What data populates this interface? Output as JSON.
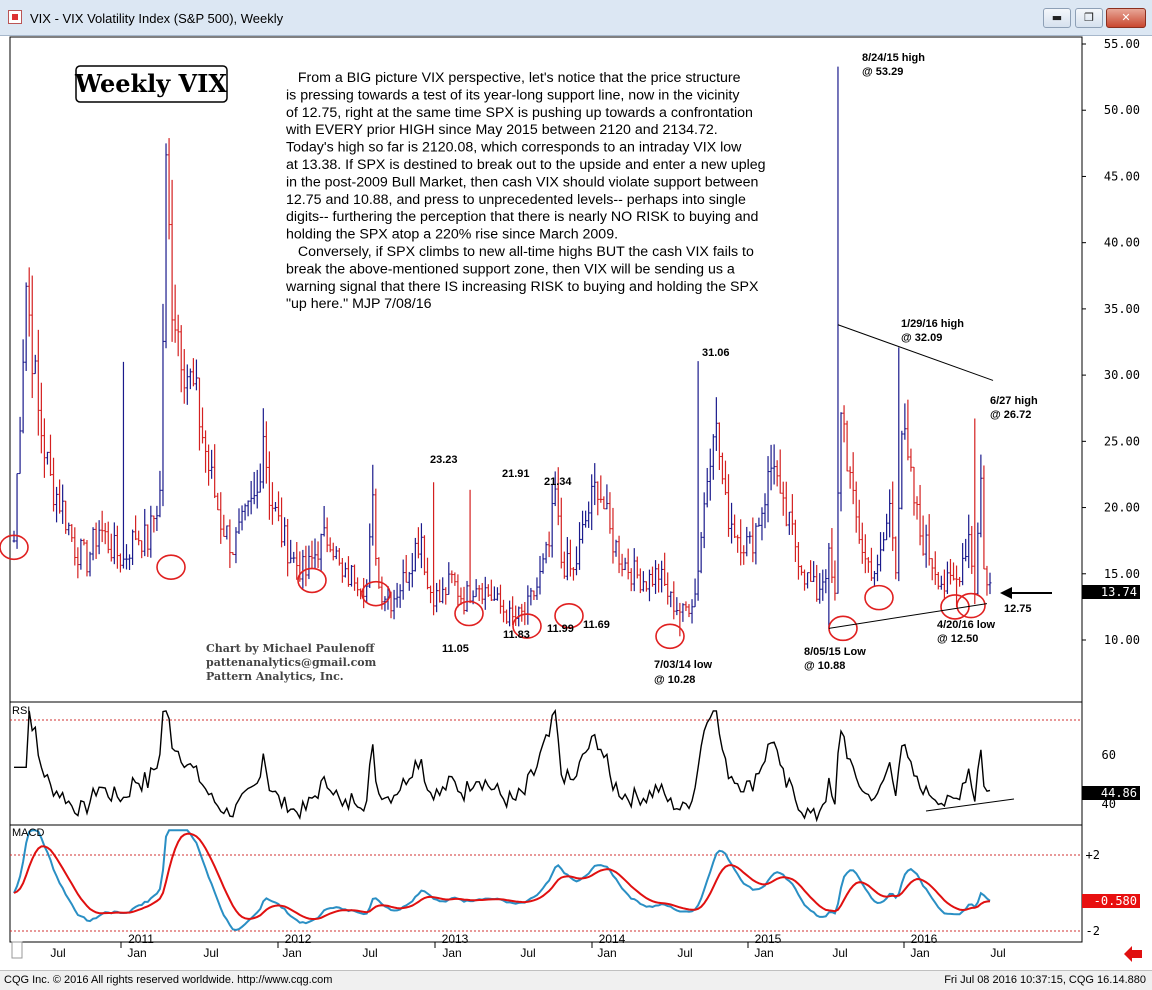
{
  "window": {
    "title": "VIX - VIX Volatility Index (S&P 500), Weekly",
    "minimize_label": "▬",
    "maximize_label": "❐",
    "close_label": "✕"
  },
  "chart": {
    "heading": "Weekly VIX",
    "commentary": [
      "   From a BIG picture VIX perspective, let's notice that the price structure",
      "is pressing towards a test of its year-long support line, now in the vicinity",
      "of 12.75, right at the same time SPX is pushing up towards a confrontation",
      "with EVERY prior HIGH since May 2015 between 2120 and 2134.72.",
      "Today's high so far is 2120.08, which corresponds to an intraday VIX low",
      "at 13.38. If SPX is destined to break out to the upside and enter a new upleg",
      "in the post-2009 Bull Market, then cash VIX should violate support between",
      "12.75 and 10.88, and press to unprecedented levels-- perhaps into single",
      "digits-- furthering the perception that there is nearly NO RISK to buying and",
      "holding the SPX atop a 220% rise since March 2009.",
      "   Conversely, if SPX climbs to new all-time highs BUT the cash VIX fails to",
      "break the above-mentioned support zone, then VIX will be sending us a",
      "warning signal that there IS increasing RISK to buying and holding the SPX",
      "\"up here.\" MJP 7/08/16"
    ],
    "credit": [
      "Chart by Michael Paulenoff",
      "pattenanalytics@gmail.com",
      "Pattern Analytics, Inc."
    ],
    "annotations": {
      "a1": "8/24/15 high",
      "a1b": "@ 53.29",
      "a2": "1/29/16 high",
      "a2b": "@ 32.09",
      "a3": "6/27 high",
      "a3b": "@ 26.72",
      "a4": "31.06",
      "a5": "23.23",
      "a6": "21.91",
      "a7": "21.34",
      "a8": "11.05",
      "a9": "11.83",
      "a10": "11.99",
      "a11": "11.69",
      "a12": "7/03/14 low",
      "a12b": "@ 10.28",
      "a13": "8/05/15 Low",
      "a13b": "@ 10.88",
      "a14": "4/20/16 low",
      "a14b": "@ 12.50",
      "a15": "12.75"
    },
    "last_value": "13.74",
    "colors": {
      "up": "#1a1a8c",
      "down": "#d42020",
      "ellipse": "#e02020",
      "macd_line": "#2a8fc4",
      "signal_line": "#e01010"
    }
  },
  "chart_data": [
    {
      "type": "bar",
      "title": "VIX - VIX Volatility Index (S&P 500), Weekly",
      "yticks": [
        "55.00",
        "50.00",
        "45.00",
        "40.00",
        "35.00",
        "30.00",
        "25.00",
        "20.00",
        "15.00",
        "10.00"
      ],
      "ylim": [
        6,
        56
      ],
      "x_labels": [
        "Jul",
        "2011",
        "Jan",
        "Jul",
        "2012",
        "Jan",
        "Jul",
        "2013",
        "Jan",
        "Jul",
        "2014",
        "Jan",
        "Jul",
        "2015",
        "Jan",
        "Jul",
        "2016",
        "Jan",
        "Jul"
      ],
      "key_points": [
        {
          "label": "8/24/15 high",
          "value": 53.29
        },
        {
          "label": "1/29/16 high",
          "value": 32.09
        },
        {
          "label": "6/27 high",
          "value": 26.72
        },
        {
          "label": "7/03/14 low",
          "value": 10.28
        },
        {
          "label": "8/05/15 Low",
          "value": 10.88
        },
        {
          "label": "4/20/16 low",
          "value": 12.5
        }
      ],
      "anchors": [
        [
          0,
          17.5
        ],
        [
          4,
          37
        ],
        [
          8,
          27
        ],
        [
          12,
          22
        ],
        [
          16,
          20
        ],
        [
          20,
          17
        ],
        [
          24,
          16
        ],
        [
          28,
          18.5
        ],
        [
          32,
          17
        ],
        [
          36,
          16
        ],
        [
          40,
          18
        ],
        [
          44,
          17.5
        ],
        [
          48,
          21
        ],
        [
          50,
          45
        ],
        [
          52,
          36
        ],
        [
          56,
          31
        ],
        [
          60,
          28
        ],
        [
          64,
          23
        ],
        [
          68,
          19
        ],
        [
          72,
          17
        ],
        [
          76,
          19
        ],
        [
          80,
          21
        ],
        [
          82,
          26
        ],
        [
          84,
          21
        ],
        [
          88,
          18
        ],
        [
          92,
          16
        ],
        [
          96,
          15
        ],
        [
          100,
          17
        ],
        [
          104,
          18
        ],
        [
          108,
          14.5
        ],
        [
          112,
          15
        ],
        [
          116,
          14
        ],
        [
          118,
          20
        ],
        [
          120,
          14
        ],
        [
          124,
          13
        ],
        [
          128,
          14.5
        ],
        [
          132,
          17
        ],
        [
          134,
          18
        ],
        [
          136,
          14
        ],
        [
          140,
          13
        ],
        [
          144,
          14.5
        ],
        [
          148,
          13
        ],
        [
          152,
          14.5
        ],
        [
          156,
          13.5
        ],
        [
          160,
          12.5
        ],
        [
          164,
          11.5
        ],
        [
          168,
          12
        ],
        [
          172,
          14
        ],
        [
          176,
          17
        ],
        [
          178,
          21
        ],
        [
          180,
          16
        ],
        [
          184,
          15
        ],
        [
          188,
          19
        ],
        [
          192,
          22
        ],
        [
          196,
          18
        ],
        [
          200,
          16
        ],
        [
          204,
          15
        ],
        [
          208,
          14.5
        ],
        [
          212,
          15
        ],
        [
          216,
          13
        ],
        [
          220,
          12
        ],
        [
          224,
          13.5
        ],
        [
          230,
          27
        ],
        [
          232,
          24
        ],
        [
          234,
          20
        ],
        [
          238,
          18
        ],
        [
          242,
          17
        ],
        [
          246,
          20
        ],
        [
          250,
          24
        ],
        [
          252,
          20
        ],
        [
          256,
          18
        ],
        [
          260,
          15
        ],
        [
          264,
          13.5
        ],
        [
          268,
          16
        ],
        [
          270,
          13
        ],
        [
          272,
          28
        ],
        [
          274,
          24
        ],
        [
          276,
          20
        ],
        [
          280,
          16
        ],
        [
          284,
          15
        ],
        [
          288,
          20
        ],
        [
          290,
          16
        ],
        [
          292,
          26
        ],
        [
          294,
          23
        ],
        [
          298,
          18
        ],
        [
          302,
          16
        ],
        [
          306,
          14
        ],
        [
          310,
          14.5
        ],
        [
          314,
          18
        ],
        [
          316,
          14
        ],
        [
          318,
          22
        ],
        [
          319,
          16
        ],
        [
          320,
          14
        ]
      ],
      "ellipse_lows": [
        17,
        15.5,
        14.5,
        13.5,
        12,
        11.05,
        11.83,
        11.99,
        10.28,
        10.88,
        13.2,
        12.5,
        12.6
      ],
      "support_line": [
        [
          268,
          10.88
        ],
        [
          320,
          12.75
        ]
      ],
      "resistance_line": [
        [
          271,
          33.8
        ],
        [
          322,
          29.6
        ]
      ]
    },
    {
      "type": "line",
      "title": "RSI",
      "yticks": [
        "60",
        "40"
      ],
      "ylim": [
        30,
        80
      ],
      "last_value": "44.86",
      "overbought": 70
    },
    {
      "type": "line",
      "title": "MACD",
      "yticks": [
        "+2",
        "-2"
      ],
      "ylim": [
        -2.5,
        3.3
      ],
      "last_value": "-0.580",
      "legend": [
        "MACD",
        "Signal"
      ]
    }
  ],
  "status": {
    "left": "CQG Inc. © 2016 All rights reserved worldwide. http://www.cqg.com",
    "right": "Fri Jul 08 2016 10:37:15, CQG 16.14.880"
  }
}
